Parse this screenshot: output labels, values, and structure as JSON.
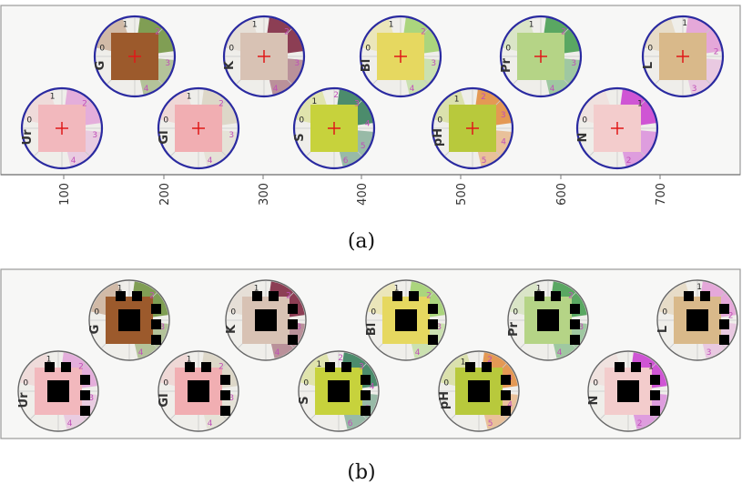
{
  "panels": [
    {
      "caption": "(a)",
      "x_ticks": [
        "100",
        "200",
        "300",
        "400",
        "500",
        "600",
        "700"
      ]
    },
    {
      "caption": "(b)"
    }
  ],
  "pads": [
    {
      "label": "G",
      "fill": "#9c5a2c",
      "accent": "#6c8f3a",
      "numbers": [
        "0",
        "1",
        "2",
        "3",
        "4"
      ]
    },
    {
      "label": "K",
      "fill": "#d8c2b4",
      "accent": "#7a1e3a",
      "numbers": [
        "0",
        "1",
        "2",
        "3",
        "4"
      ]
    },
    {
      "label": "Bl",
      "fill": "#e6d860",
      "accent": "#9fd06a",
      "numbers": [
        "0",
        "1",
        "2",
        "3",
        "4"
      ]
    },
    {
      "label": "Pr",
      "fill": "#b5d486",
      "accent": "#3f9a4a",
      "numbers": [
        "0",
        "1",
        "2",
        "3",
        "4"
      ]
    },
    {
      "label": "L",
      "fill": "#d9b98a",
      "accent": "#e39bd6",
      "numbers": [
        "0",
        "1",
        "2",
        "3"
      ]
    },
    {
      "label": "Ur",
      "fill": "#f2b8bd",
      "accent": "#e2a2d8",
      "numbers": [
        "0",
        "1",
        "2",
        "3",
        "4"
      ]
    },
    {
      "label": "Gl",
      "fill": "#f1aeb2",
      "accent": "#d9d2c2",
      "numbers": [
        "0",
        "1",
        "2",
        "3",
        "4"
      ]
    },
    {
      "label": "S",
      "fill": "#c7d23c",
      "accent": "#2f7a56",
      "numbers": [
        "0",
        "1",
        "2",
        "3",
        "4",
        "5",
        "6"
      ]
    },
    {
      "label": "pH",
      "fill": "#b8c93c",
      "accent": "#e28a3a",
      "numbers": [
        "0",
        "1",
        "2",
        "3",
        "4",
        "5"
      ]
    },
    {
      "label": "N",
      "fill": "#f3cccc",
      "accent": "#c93ad0",
      "numbers": [
        "0",
        "1",
        "2"
      ]
    }
  ],
  "colors": {
    "ring_a": "#2a2aa0",
    "ring_b": "#666666",
    "cross": "#e01818",
    "marker": "#000000",
    "strip": "#f7f7f6"
  },
  "icons": {
    "center_mark": "plus-crosshair",
    "detection_marker": "black-square"
  }
}
